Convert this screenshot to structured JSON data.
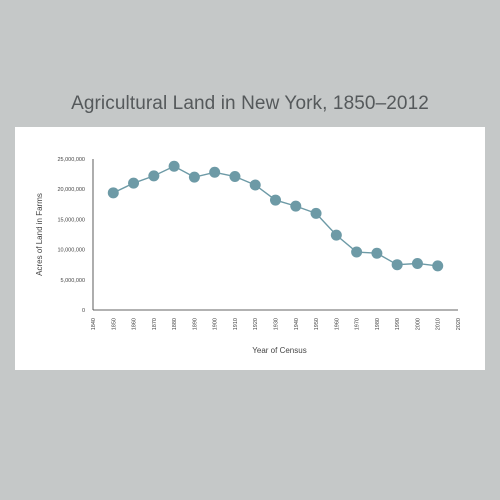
{
  "chart_data": {
    "type": "line",
    "title": "Agricultural Land in New York, 1850–2012",
    "xlabel": "Year of Census",
    "ylabel": "Acres of Land in Farms",
    "x": [
      1850,
      1860,
      1870,
      1880,
      1890,
      1900,
      1910,
      1920,
      1930,
      1940,
      1950,
      1960,
      1970,
      1980,
      1990,
      2000,
      2010
    ],
    "series": [
      {
        "values": [
          19400000,
          21000000,
          22200000,
          23800000,
          22000000,
          22800000,
          22100000,
          20700000,
          18200000,
          17200000,
          16000000,
          12400000,
          9600000,
          9400000,
          7500000,
          7700000,
          7300000
        ]
      }
    ],
    "xlim": [
      1840,
      2020
    ],
    "ylim": [
      0,
      25000000
    ],
    "x_ticks": [
      "1840",
      "1850",
      "1860",
      "1870",
      "1880",
      "1890",
      "1900",
      "1910",
      "1920",
      "1930",
      "1940",
      "1950",
      "1960",
      "1970",
      "1980",
      "1990",
      "2000",
      "2010",
      "2020"
    ],
    "y_ticks": [
      "0",
      "5,000,000",
      "10,000,000",
      "15,000,000",
      "20,000,000",
      "25,000,000"
    ],
    "grid": false,
    "colors": {
      "line": "#6d9aa6",
      "point": "#6d9aa6",
      "axis": "#333333"
    }
  }
}
